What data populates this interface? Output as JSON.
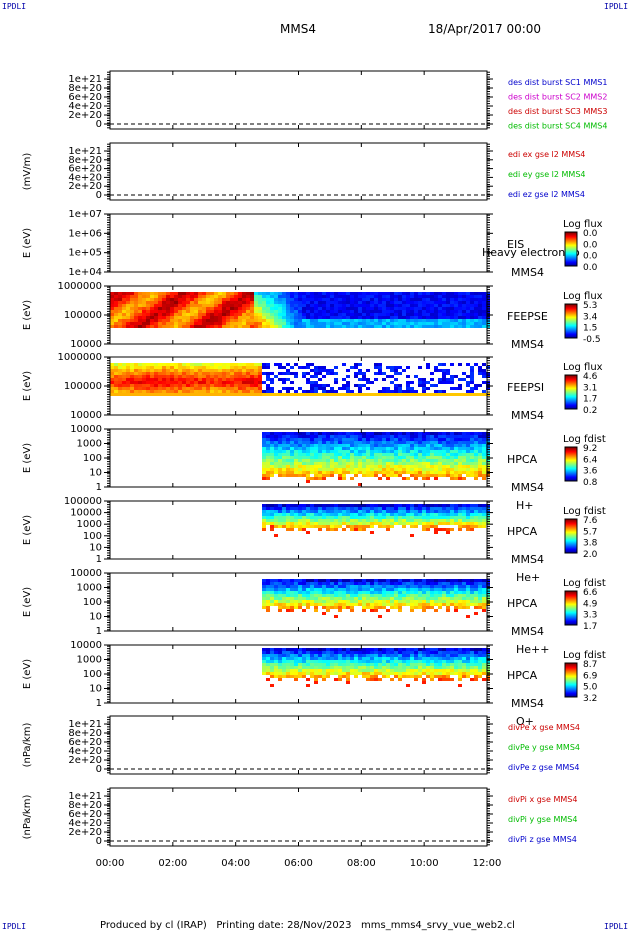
{
  "header": {
    "corner_tl": "IPDLI",
    "corner_tr": "IPDLI",
    "corner_bl": "IPDLI",
    "corner_br": "IPDLI",
    "spacecraft": "MMS4",
    "datetime": "18/Apr/2017 00:00"
  },
  "footer": {
    "text": "Produced by cl (IRAP)   Printing date: 28/Nov/2023   mms_mms4_srvy_vue_web2.cl"
  },
  "colors": {
    "red": "#cc0000",
    "magenta": "#cc00cc",
    "green": "#00bb00",
    "blue": "#0000cc"
  },
  "chart_data": [
    {
      "type": "line",
      "ylabel": "",
      "yticks": [
        "0",
        "2e+20",
        "4e+20",
        "6e+20",
        "8e+20",
        "1e+21"
      ],
      "legend": [
        {
          "text": "des dist burst SC1 MMS1",
          "color": "#0000cc"
        },
        {
          "text": "des dist burst SC2 MMS2",
          "color": "#cc00cc"
        },
        {
          "text": "des dist burst SC3 MMS3",
          "color": "#cc0000"
        },
        {
          "text": "des dist burst SC4 MMS4",
          "color": "#00bb00"
        }
      ]
    },
    {
      "type": "line",
      "ylabel": "(mV/m)",
      "yticks": [
        "0",
        "2e+20",
        "4e+20",
        "6e+20",
        "8e+20",
        "1e+21"
      ],
      "legend": [
        {
          "text": "edi ex gse l2 MMS4",
          "color": "#cc0000"
        },
        {
          "text": "edi ey gse l2 MMS4",
          "color": "#00bb00"
        },
        {
          "text": "edi ez gse l2 MMS4",
          "color": "#0000cc"
        }
      ]
    },
    {
      "type": "heatmap",
      "ylabel": "E (eV)",
      "yticks": [
        "1e+04",
        "1e+05",
        "1e+06",
        "1e+07"
      ],
      "label1": "EIS",
      "label2": "MMS4",
      "label3": "",
      "overlay": "Heavy electron to",
      "cbar_title": "Log flux",
      "cbar": [
        "0.0",
        "0.0",
        "0.0",
        "0.0"
      ],
      "onset": null
    },
    {
      "type": "heatmap",
      "ylabel": "E (eV)",
      "yticks": [
        "10000",
        "100000",
        "1000000"
      ],
      "label1": "FEEPSE",
      "label2": "MMS4",
      "label3": "",
      "overlay": "",
      "cbar_title": "Log flux",
      "cbar": [
        "5.3",
        "3.4",
        "1.5",
        "-0.5"
      ],
      "onset": 0
    },
    {
      "type": "heatmap",
      "ylabel": "E (eV)",
      "yticks": [
        "10000",
        "100000",
        "1000000"
      ],
      "label1": "FEEPSI",
      "label2": "MMS4",
      "label3": "",
      "overlay": "",
      "cbar_title": "Log flux",
      "cbar": [
        "4.6",
        "3.1",
        "1.7",
        "0.2"
      ],
      "onset": 0
    },
    {
      "type": "heatmap",
      "ylabel": "E (eV)",
      "yticks": [
        "1",
        "10",
        "100",
        "1000",
        "10000"
      ],
      "label1": "HPCA",
      "label2": "MMS4",
      "label3": "H+",
      "overlay": "",
      "cbar_title": "Log fdist",
      "cbar": [
        "9.2",
        "6.4",
        "3.6",
        "0.8"
      ],
      "onset": 4.75
    },
    {
      "type": "heatmap",
      "ylabel": "E (eV)",
      "yticks": [
        "1",
        "10",
        "100",
        "1000",
        "10000",
        "100000"
      ],
      "label1": "HPCA",
      "label2": "MMS4",
      "label3": "He+",
      "overlay": "",
      "cbar_title": "Log fdist",
      "cbar": [
        "7.6",
        "5.7",
        "3.8",
        "2.0"
      ],
      "onset": 4.75
    },
    {
      "type": "heatmap",
      "ylabel": "E (eV)",
      "yticks": [
        "1",
        "10",
        "100",
        "1000",
        "10000"
      ],
      "label1": "HPCA",
      "label2": "MMS4",
      "label3": "He++",
      "overlay": "",
      "cbar_title": "Log fdist",
      "cbar": [
        "6.6",
        "4.9",
        "3.3",
        "1.7"
      ],
      "onset": 4.75
    },
    {
      "type": "heatmap",
      "ylabel": "E (eV)",
      "yticks": [
        "1",
        "10",
        "100",
        "1000",
        "10000"
      ],
      "label1": "HPCA",
      "label2": "MMS4",
      "label3": "O+",
      "overlay": "",
      "cbar_title": "Log fdist",
      "cbar": [
        "8.7",
        "6.9",
        "5.0",
        "3.2"
      ],
      "onset": 4.75
    },
    {
      "type": "line",
      "ylabel": "(nPa/km)",
      "yticks": [
        "0",
        "2e+20",
        "4e+20",
        "6e+20",
        "8e+20",
        "1e+21"
      ],
      "legend": [
        {
          "text": "divPe x gse MMS4",
          "color": "#cc0000"
        },
        {
          "text": "divPe y gse MMS4",
          "color": "#00bb00"
        },
        {
          "text": "divPe z gse MMS4",
          "color": "#0000cc"
        }
      ]
    },
    {
      "type": "line",
      "ylabel": "(nPa/km)",
      "yticks": [
        "0",
        "2e+20",
        "4e+20",
        "6e+20",
        "8e+20",
        "1e+21"
      ],
      "legend": [
        {
          "text": "divPi x gse MMS4",
          "color": "#cc0000"
        },
        {
          "text": "divPi y gse MMS4",
          "color": "#00bb00"
        },
        {
          "text": "divPi z gse MMS4",
          "color": "#0000cc"
        }
      ]
    }
  ],
  "xaxis": {
    "ticks": [
      "00:00",
      "02:00",
      "04:00",
      "06:00",
      "08:00",
      "10:00",
      "12:00"
    ],
    "range_hours": [
      0,
      12
    ]
  }
}
